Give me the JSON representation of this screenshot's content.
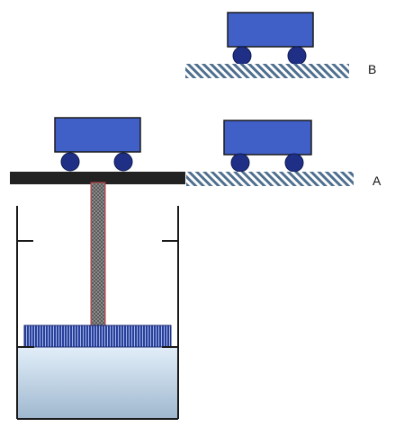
{
  "labels": {
    "level_b": "B",
    "level_a": "A"
  },
  "colors": {
    "cart_body": "#4060c8",
    "cart_outline": "#1a1a1a",
    "wheel": "#1f2f86",
    "platform": "#222222",
    "ground_stripe": "#4f6f8f",
    "ground_bg": "#ffffff",
    "piston_rod": "#808080",
    "piston_rod_edge": "#c23a3a",
    "piston_head": "#2a3f9a",
    "piston_head_stripe": "#9fb4e6",
    "fluid_top": "#e3effa",
    "fluid_bottom": "#9fb8cf",
    "container_outline": "#1a1a1a"
  },
  "icons": {
    "cart": "cart-icon",
    "wheel": "wheel-icon",
    "ground": "hatched-ground-icon"
  }
}
